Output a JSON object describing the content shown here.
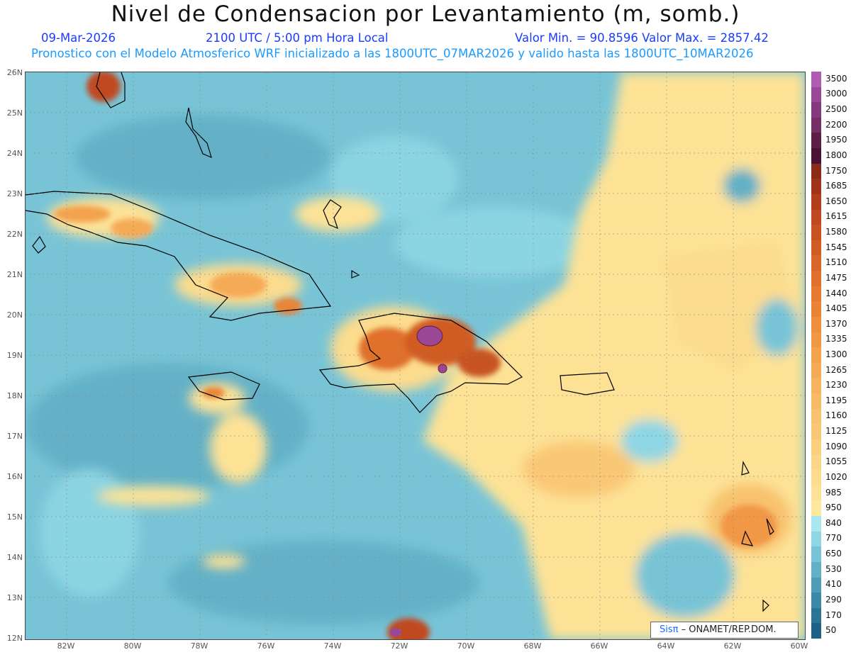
{
  "title": "Nivel de Condensacion por Levantamiento (m, somb.)",
  "date": "09-Mar-2026",
  "time": "2100 UTC / 5:00 pm Hora Local",
  "minmax": "Valor Min. = 90.8596   Valor Max. = 2857.42",
  "forecast": "Pronostico con el Modelo Atmosferico WRF inicializado a las 1800UTC_07MAR2026 y valido hasta las  1800UTC_10MAR2026",
  "lat_labels": [
    "26N",
    "25N",
    "24N",
    "23N",
    "22N",
    "21N",
    "20N",
    "19N",
    "18N",
    "17N",
    "16N",
    "15N",
    "14N",
    "13N",
    "12N"
  ],
  "lon_labels": [
    "82W",
    "80W",
    "78W",
    "76W",
    "74W",
    "72W",
    "70W",
    "68W",
    "66W",
    "64W",
    "62W",
    "60W"
  ],
  "colorbar": {
    "labels": [
      "3500",
      "3000",
      "2500",
      "2200",
      "1950",
      "1800",
      "1750",
      "1685",
      "1650",
      "1615",
      "1580",
      "1545",
      "1510",
      "1475",
      "1440",
      "1405",
      "1370",
      "1335",
      "1300",
      "1265",
      "1230",
      "1195",
      "1160",
      "1125",
      "1090",
      "1055",
      "1020",
      "985",
      "950",
      "840",
      "770",
      "650",
      "530",
      "410",
      "290",
      "170",
      "50"
    ],
    "colors": [
      "#b05cb0",
      "#9a4896",
      "#86387e",
      "#743066",
      "#5e1e46",
      "#4a1232",
      "#8a2a18",
      "#a0341a",
      "#b33e1c",
      "#c04820",
      "#c85222",
      "#d05c24",
      "#d86628",
      "#e0702c",
      "#e57a30",
      "#e98436",
      "#ee8e3e",
      "#f19846",
      "#f3a24e",
      "#f5aa56",
      "#f6b25e",
      "#f7ba66",
      "#f8c26e",
      "#f9c876",
      "#fad07e",
      "#fbd686",
      "#fcdc8e",
      "#fde296",
      "#fee89e",
      "#a8e6f0",
      "#8ed6e4",
      "#78c4d6",
      "#62b0c6",
      "#4e9cb6",
      "#3c88a6",
      "#2c7496",
      "#1e6086"
    ]
  },
  "credit": {
    "brand": "Sisπ",
    "text": "– ONAMET/REP.DOM."
  }
}
